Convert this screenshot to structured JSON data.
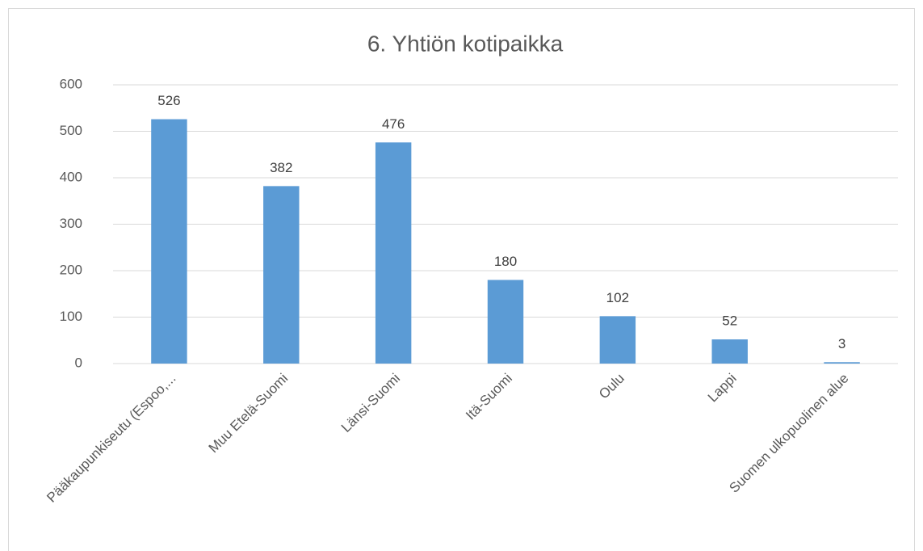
{
  "chart_data": {
    "type": "bar",
    "title": "6. Yhtiön kotipaikka",
    "categories": [
      "Pääkaupunkiseutu (Espoo,...",
      "Muu Etelä-Suomi",
      "Länsi-Suomi",
      "Itä-Suomi",
      "Oulu",
      "Lappi",
      "Suomen ulkopuolinen alue"
    ],
    "values": [
      526,
      382,
      476,
      180,
      102,
      52,
      3
    ],
    "color": "#5b9bd5",
    "ylim": [
      0,
      600
    ],
    "yticks": [
      0,
      100,
      200,
      300,
      400,
      500,
      600
    ],
    "grid": true
  }
}
